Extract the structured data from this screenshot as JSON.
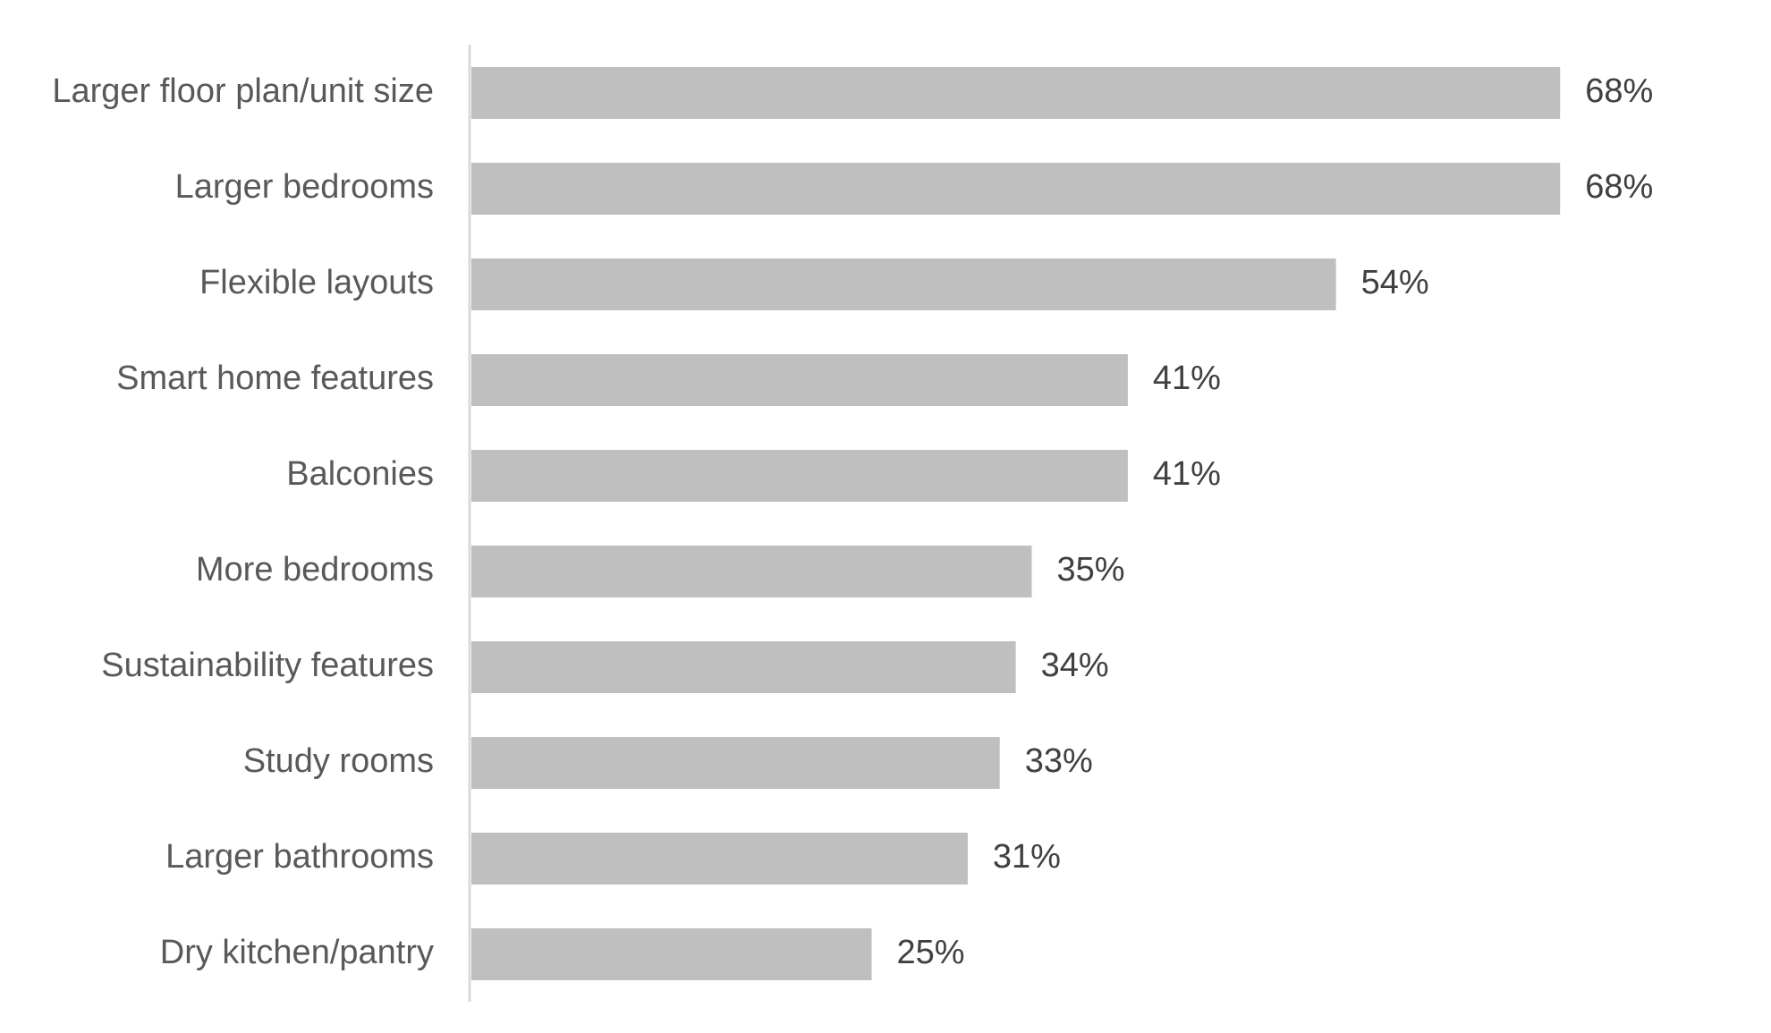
{
  "chart_data": {
    "type": "bar",
    "orientation": "horizontal",
    "categories": [
      "Larger floor plan/unit size",
      "Larger bedrooms",
      "Flexible layouts",
      "Smart home features",
      "Balconies",
      "More bedrooms",
      "Sustainability features",
      "Study rooms",
      "Larger bathrooms",
      "Dry kitchen/pantry"
    ],
    "values": [
      68,
      68,
      54,
      41,
      41,
      35,
      34,
      33,
      31,
      25
    ],
    "data_labels": [
      "68%",
      "68%",
      "54%",
      "41%",
      "41%",
      "35%",
      "34%",
      "33%",
      "31%",
      "25%"
    ],
    "title": "",
    "xlabel": "",
    "ylabel": "",
    "xlim": [
      0,
      100
    ],
    "grid": false,
    "legend": "none",
    "colors": {
      "bar": "#bfbfbf",
      "axis": "#d9d9d9",
      "category_text": "#595959",
      "value_text": "#404040"
    }
  }
}
